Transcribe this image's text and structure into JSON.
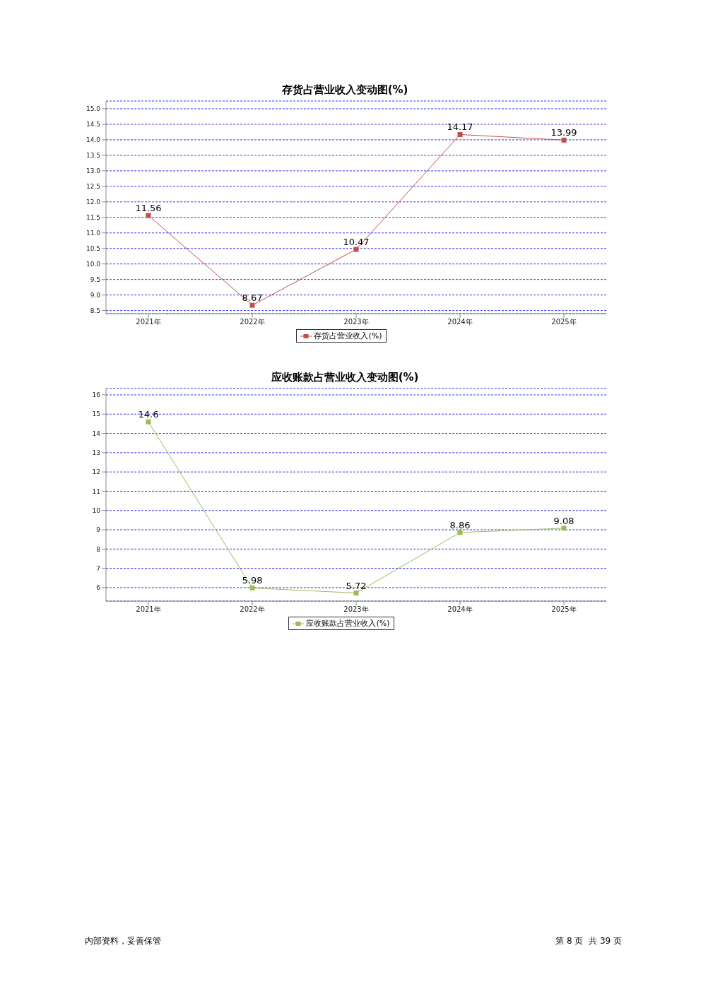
{
  "chart_data": [
    {
      "type": "line",
      "title": "存货占营业收入变动图(%)",
      "categories": [
        "2021年",
        "2022年",
        "2023年",
        "2024年",
        "2025年"
      ],
      "series": [
        {
          "name": "存货占营业收入(%)",
          "color": "#c0504d",
          "values": [
            11.56,
            8.67,
            10.47,
            14.17,
            13.99
          ]
        }
      ],
      "ylim": [
        8.4,
        15.25
      ],
      "yticks": [
        8.5,
        {
          "value": 9,
          "label": "9.0"
        },
        9.5,
        {
          "value": 10,
          "label": "10.0"
        },
        10.5,
        {
          "value": 11,
          "label": "11.0"
        },
        11.5,
        {
          "value": 12,
          "label": "12.0"
        },
        12.5,
        {
          "value": 13,
          "label": "13.0"
        },
        13.5,
        {
          "value": 14,
          "label": "14.0"
        },
        14.5,
        {
          "value": 15,
          "label": "15.0"
        }
      ],
      "grid": "y",
      "legend": "bottom",
      "marker": "square",
      "data_labels": true
    },
    {
      "type": "line",
      "title": "应收账款占营业收入变动图(%)",
      "categories": [
        "2021年",
        "2022年",
        "2023年",
        "2024年",
        "2025年"
      ],
      "series": [
        {
          "name": "应收账款占营业收入(%)",
          "color": "#9bbb59",
          "values": [
            14.6,
            5.98,
            5.72,
            8.86,
            9.08
          ]
        }
      ],
      "ylim": [
        5.3,
        16.33
      ],
      "yticks": [
        6,
        7,
        8,
        9,
        10,
        11,
        12,
        13,
        14,
        15,
        16
      ],
      "grid": "y",
      "legend": "bottom",
      "marker": "square",
      "data_labels": true,
      "annotations": [
        "内部资料，妥善保管",
        "第 8 页  共 39 页"
      ]
    }
  ]
}
